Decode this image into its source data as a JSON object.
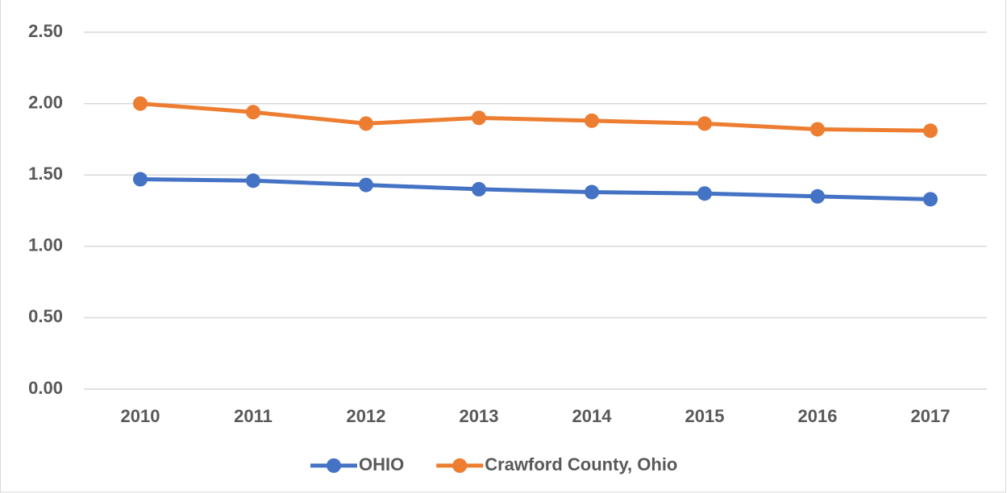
{
  "chart_data": {
    "type": "line",
    "categories": [
      "2010",
      "2011",
      "2012",
      "2013",
      "2014",
      "2015",
      "2016",
      "2017"
    ],
    "series": [
      {
        "name": "OHIO",
        "color": "#4472c4",
        "values": [
          1.47,
          1.46,
          1.43,
          1.4,
          1.38,
          1.37,
          1.35,
          1.33
        ]
      },
      {
        "name": "Crawford County, Ohio",
        "color": "#ed7d31",
        "values": [
          2.0,
          1.94,
          1.86,
          1.9,
          1.88,
          1.86,
          1.82,
          1.81
        ]
      }
    ],
    "ylim": [
      0,
      2.5
    ],
    "yticks": [
      {
        "value": 0,
        "label": "0.00"
      },
      {
        "value": 0.5,
        "label": "0.50"
      },
      {
        "value": 1,
        "label": "1.00"
      },
      {
        "value": 1.5,
        "label": "1.50"
      },
      {
        "value": 2,
        "label": "2.00"
      },
      {
        "value": 2.5,
        "label": "2.50"
      }
    ],
    "grid": true,
    "legend": "bottom"
  }
}
